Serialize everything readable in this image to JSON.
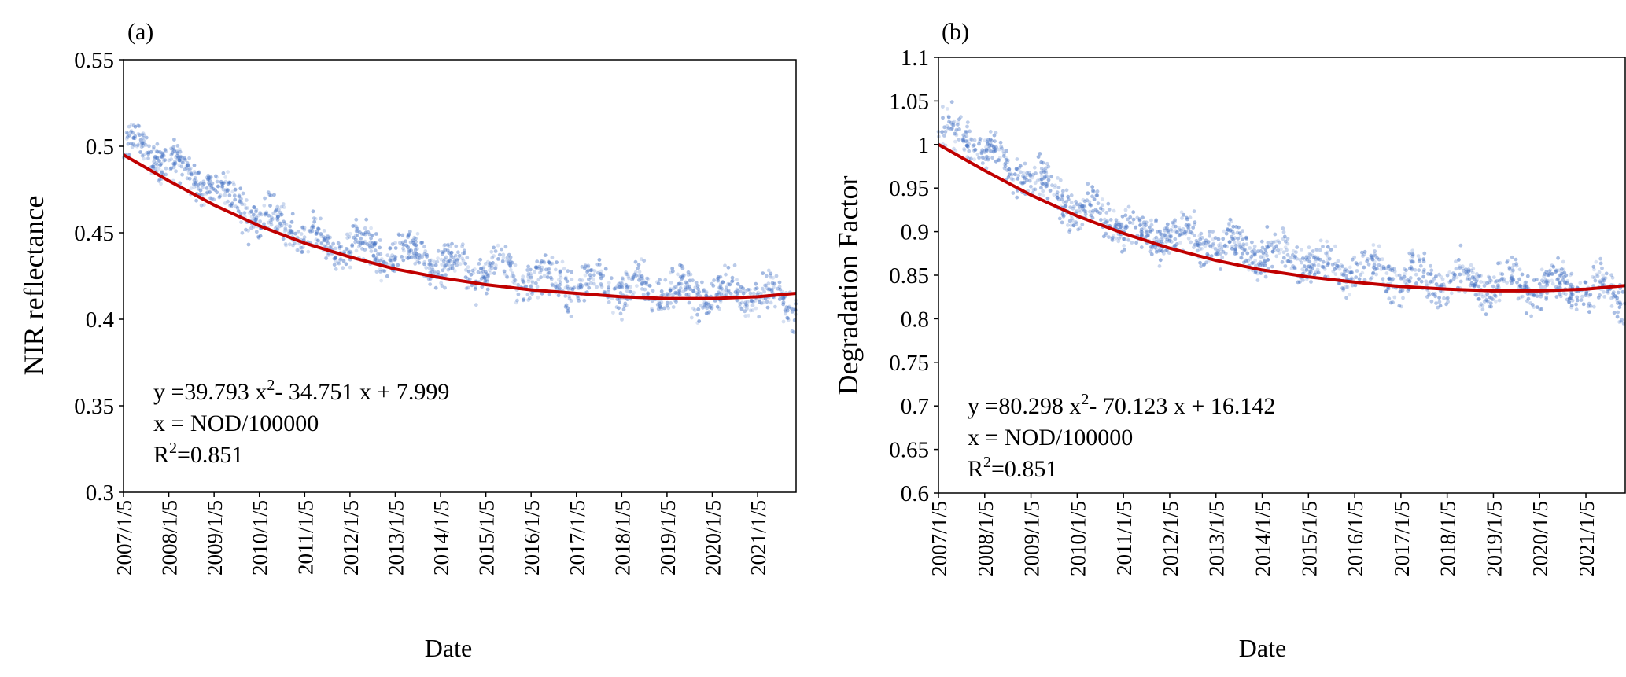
{
  "chart_data": [
    {
      "panel_label": "(a)",
      "type": "scatter",
      "title": "",
      "xlabel": "Date",
      "ylabel": "NIR reflectance",
      "ylim": [
        0.3,
        0.55
      ],
      "yticks": [
        "0.3",
        "0.35",
        "0.4",
        "0.45",
        "0.5",
        "0.55"
      ],
      "xlim_years": [
        2007.0,
        2021.85
      ],
      "xticks": [
        "2007/1/5",
        "2008/1/5",
        "2009/1/5",
        "2010/1/5",
        "2011/1/5",
        "2012/1/5",
        "2013/1/5",
        "2014/1/5",
        "2015/1/5",
        "2016/1/5",
        "2017/1/5",
        "2018/1/5",
        "2019/1/5",
        "2020/1/5",
        "2021/1/5"
      ],
      "grid": false,
      "series": [
        {
          "name": "observations",
          "kind": "scatter",
          "color": "#4472C4",
          "trend_x": [
            2007.0,
            2007.5,
            2008.0,
            2008.5,
            2009.0,
            2009.5,
            2010.0,
            2010.5,
            2011.0,
            2011.5,
            2012.0,
            2012.5,
            2013.0,
            2013.5,
            2014.0,
            2014.5,
            2015.0,
            2015.5,
            2016.0,
            2016.5,
            2017.0,
            2017.5,
            2018.0,
            2018.5,
            2019.0,
            2019.5,
            2020.0,
            2020.5,
            2021.0,
            2021.5,
            2021.85
          ],
          "trend_y": [
            0.494,
            0.503,
            0.487,
            0.486,
            0.473,
            0.473,
            0.452,
            0.46,
            0.443,
            0.447,
            0.437,
            0.447,
            0.431,
            0.445,
            0.426,
            0.437,
            0.421,
            0.434,
            0.416,
            0.431,
            0.412,
            0.426,
            0.41,
            0.425,
            0.408,
            0.421,
            0.407,
            0.421,
            0.408,
            0.42,
            0.405
          ],
          "spread": 0.011,
          "seasonal_amplitude": 0.009
        },
        {
          "name": "quadratic fit",
          "kind": "line",
          "color": "#C00000",
          "equation": "y = 39.793 x² − 34.751 x + 7.999",
          "coefficients": [
            39.793,
            -34.751,
            7.999
          ],
          "x": [
            2007.0,
            2008.0,
            2009.0,
            2010.0,
            2011.0,
            2012.0,
            2013.0,
            2014.0,
            2015.0,
            2016.0,
            2017.0,
            2018.0,
            2019.0,
            2020.0,
            2021.0,
            2021.85
          ],
          "y": [
            0.495,
            0.48,
            0.466,
            0.454,
            0.444,
            0.436,
            0.429,
            0.424,
            0.42,
            0.417,
            0.415,
            0.413,
            0.412,
            0.412,
            0.413,
            0.415
          ]
        }
      ],
      "annotation": {
        "equation_prefix": "y =39.793  x",
        "equation_middle": "- 34.751  x + 7.999",
        "x_definition": "x = NOD/100000",
        "r2_prefix": "R",
        "r2_suffix": "=0.851",
        "superscript": "2"
      }
    },
    {
      "panel_label": "(b)",
      "type": "scatter",
      "title": "",
      "xlabel": "Date",
      "ylabel": "Degradation  Factor",
      "ylim": [
        0.6,
        1.1
      ],
      "yticks": [
        "0.6",
        "0.65",
        "0.7",
        "0.75",
        "0.8",
        "0.85",
        "0.9",
        "0.95",
        "1",
        "1.05",
        "1.1"
      ],
      "xlim_years": [
        2007.0,
        2021.85
      ],
      "xticks": [
        "2007/1/5",
        "2008/1/5",
        "2009/1/5",
        "2010/1/5",
        "2011/1/5",
        "2012/1/5",
        "2013/1/5",
        "2014/1/5",
        "2015/1/5",
        "2016/1/5",
        "2017/1/5",
        "2018/1/5",
        "2019/1/5",
        "2020/1/5",
        "2021/1/5"
      ],
      "grid": false,
      "series": [
        {
          "name": "observations",
          "kind": "scatter",
          "color": "#4472C4",
          "trend_x": [
            2007.0,
            2007.5,
            2008.0,
            2008.5,
            2009.0,
            2009.5,
            2010.0,
            2010.5,
            2011.0,
            2011.5,
            2012.0,
            2012.5,
            2013.0,
            2013.5,
            2014.0,
            2014.5,
            2015.0,
            2015.5,
            2016.0,
            2016.5,
            2017.0,
            2017.5,
            2018.0,
            2018.5,
            2019.0,
            2019.5,
            2020.0,
            2020.5,
            2021.0,
            2021.5,
            2021.85
          ],
          "trend_y": [
            1.0,
            1.02,
            0.985,
            0.982,
            0.955,
            0.958,
            0.915,
            0.93,
            0.895,
            0.905,
            0.885,
            0.905,
            0.872,
            0.9,
            0.86,
            0.885,
            0.85,
            0.875,
            0.84,
            0.872,
            0.832,
            0.862,
            0.828,
            0.858,
            0.823,
            0.852,
            0.82,
            0.852,
            0.822,
            0.848,
            0.815
          ],
          "spread": 0.022,
          "seasonal_amplitude": 0.018
        },
        {
          "name": "quadratic fit",
          "kind": "line",
          "color": "#C00000",
          "equation": "y = 80.298 x² − 70.123 x + 16.142",
          "coefficients": [
            80.298,
            -70.123,
            16.142
          ],
          "x": [
            2007.0,
            2008.0,
            2009.0,
            2010.0,
            2011.0,
            2012.0,
            2013.0,
            2014.0,
            2015.0,
            2016.0,
            2017.0,
            2018.0,
            2019.0,
            2020.0,
            2021.0,
            2021.85
          ],
          "y": [
            1.0,
            0.97,
            0.942,
            0.918,
            0.898,
            0.881,
            0.867,
            0.856,
            0.848,
            0.842,
            0.837,
            0.834,
            0.832,
            0.832,
            0.834,
            0.838
          ]
        }
      ],
      "annotation": {
        "equation_prefix": "y =80.298  x",
        "equation_middle": "- 70.123  x + 16.142",
        "x_definition": "x = NOD/100000",
        "r2_prefix": "R",
        "r2_suffix": "=0.851",
        "superscript": "2"
      }
    }
  ]
}
